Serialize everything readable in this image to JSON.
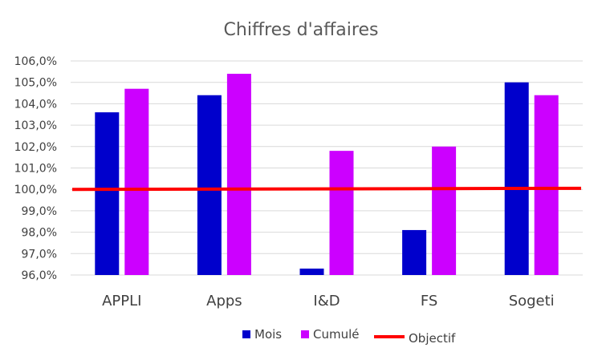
{
  "chart_data": {
    "type": "bar",
    "title": "Chiffres d'affaires",
    "categories": [
      "APPLI",
      "Apps",
      "I&D",
      "FS",
      "Sogeti"
    ],
    "series": [
      {
        "name": "Mois",
        "color": "#0000cc",
        "values": [
          103.6,
          104.4,
          96.3,
          98.1,
          105.0
        ]
      },
      {
        "name": "Cumulé",
        "color": "#cc00ff",
        "values": [
          104.7,
          105.4,
          101.8,
          102.0,
          104.4
        ]
      }
    ],
    "objective": {
      "name": "Objectif",
      "color": "#ff0000",
      "start": 100.0,
      "end": 100.05
    },
    "ylim": [
      96,
      106
    ],
    "yticks": [
      "96,0%",
      "97,0%",
      "98,0%",
      "99,0%",
      "100,0%",
      "101,0%",
      "102,0%",
      "103,0%",
      "104,0%",
      "105,0%",
      "106,0%"
    ],
    "grid": true,
    "legend_position": "bottom"
  }
}
